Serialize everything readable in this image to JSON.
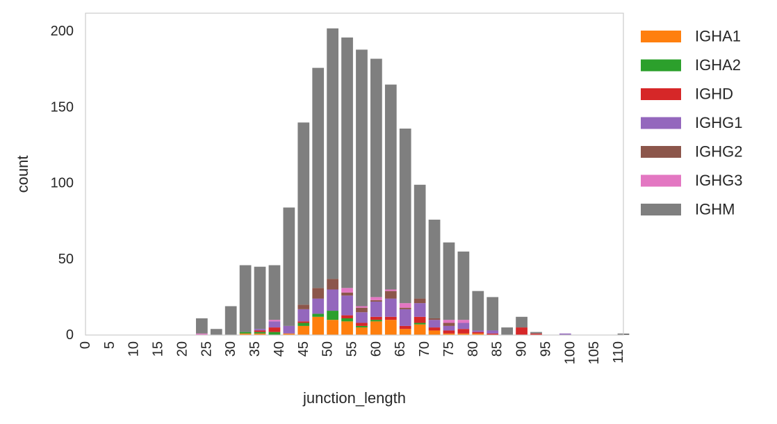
{
  "chart_data": {
    "type": "bar",
    "stacked": true,
    "xlabel": "junction_length",
    "ylabel": "count",
    "xlim": [
      0,
      111
    ],
    "ylim": [
      0,
      212
    ],
    "xticks": [
      0,
      5,
      10,
      15,
      20,
      25,
      30,
      35,
      40,
      45,
      50,
      55,
      60,
      65,
      70,
      75,
      80,
      85,
      90,
      95,
      100,
      105,
      110
    ],
    "yticks": [
      0,
      50,
      100,
      150,
      200
    ],
    "grid": false,
    "legend_position": "outside-right",
    "x": [
      24,
      27,
      30,
      33,
      36,
      39,
      42,
      45,
      48,
      51,
      54,
      57,
      60,
      63,
      66,
      69,
      72,
      75,
      78,
      81,
      84,
      87,
      90,
      93,
      96,
      99,
      102,
      105,
      108,
      111
    ],
    "series": [
      {
        "name": "IGHA1",
        "color": "#ff7f0e",
        "values": [
          0,
          0,
          0,
          1,
          1,
          0,
          1,
          6,
          12,
          10,
          9,
          5,
          9,
          10,
          4,
          7,
          3,
          1,
          1,
          1,
          0,
          0,
          0,
          0,
          0,
          0,
          0,
          0,
          0,
          0
        ]
      },
      {
        "name": "IGHA2",
        "color": "#2ca02c",
        "values": [
          0,
          0,
          0,
          1,
          1,
          2,
          0,
          2,
          2,
          6,
          2,
          1,
          1,
          0,
          0,
          1,
          0,
          0,
          0,
          0,
          0,
          0,
          0,
          0,
          0,
          0,
          0,
          0,
          0,
          0
        ]
      },
      {
        "name": "IGHD",
        "color": "#d62728",
        "values": [
          0,
          0,
          0,
          0,
          1,
          3,
          0,
          1,
          0,
          0,
          2,
          2,
          2,
          2,
          2,
          4,
          2,
          2,
          3,
          1,
          1,
          0,
          5,
          1,
          0,
          0,
          0,
          0,
          0,
          0
        ]
      },
      {
        "name": "IGHG1",
        "color": "#9467bd",
        "values": [
          0,
          0,
          0,
          0,
          1,
          4,
          5,
          8,
          10,
          14,
          13,
          7,
          10,
          12,
          11,
          9,
          5,
          3,
          4,
          1,
          2,
          0,
          0,
          0,
          0,
          1,
          0,
          0,
          0,
          0
        ]
      },
      {
        "name": "IGHG2",
        "color": "#8c564b",
        "values": [
          0,
          0,
          0,
          0,
          0,
          0,
          0,
          3,
          7,
          7,
          2,
          3,
          1,
          5,
          1,
          3,
          1,
          2,
          0,
          0,
          0,
          0,
          0,
          0,
          0,
          0,
          0,
          0,
          0,
          0
        ]
      },
      {
        "name": "IGHG3",
        "color": "#e377c2",
        "values": [
          1,
          0,
          0,
          0,
          0,
          1,
          0,
          0,
          0,
          0,
          3,
          1,
          2,
          1,
          3,
          0,
          0,
          2,
          2,
          0,
          0,
          0,
          0,
          0,
          0,
          0,
          0,
          0,
          0,
          0
        ]
      },
      {
        "name": "IGHM",
        "color": "#7f7f7f",
        "values": [
          10,
          4,
          19,
          44,
          41,
          36,
          78,
          120,
          145,
          165,
          165,
          169,
          157,
          135,
          115,
          75,
          65,
          51,
          45,
          26,
          22,
          5,
          7,
          1,
          0,
          0,
          0,
          0,
          0,
          1
        ]
      }
    ]
  }
}
